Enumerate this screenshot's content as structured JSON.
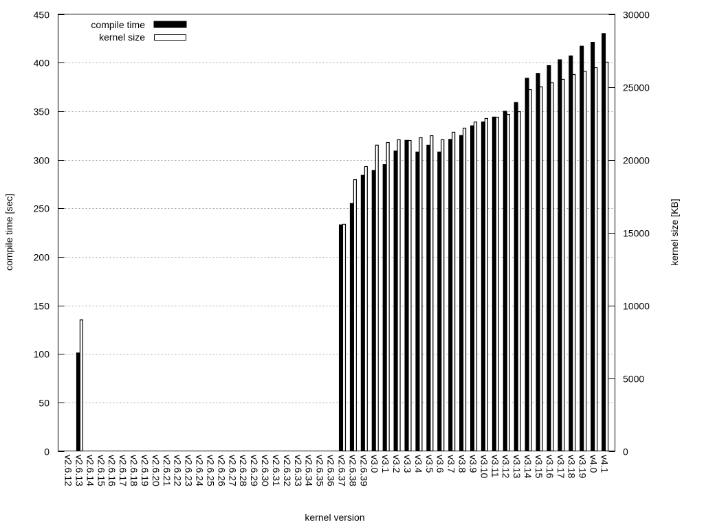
{
  "chart_data": {
    "type": "bar",
    "xlabel": "kernel version",
    "ylabel": "compile time [sec]",
    "y2label": "kernel size [KB]",
    "ylim": [
      0,
      450
    ],
    "y2lim": [
      0,
      30000
    ],
    "yticks": [
      0,
      50,
      100,
      150,
      200,
      250,
      300,
      350,
      400,
      450
    ],
    "y2ticks": [
      0,
      5000,
      10000,
      15000,
      20000,
      25000,
      30000
    ],
    "grid": true,
    "legend_position": "top-left",
    "categories": [
      "v2.6.12",
      "v2.6.13",
      "v2.6.14",
      "v2.6.15",
      "v2.6.16",
      "v2.6.17",
      "v2.6.18",
      "v2.6.19",
      "v2.6.20",
      "v2.6.21",
      "v2.6.22",
      "v2.6.23",
      "v2.6.24",
      "v2.6.25",
      "v2.6.26",
      "v2.6.27",
      "v2.6.28",
      "v2.6.29",
      "v2.6.30",
      "v2.6.31",
      "v2.6.32",
      "v2.6.33",
      "v2.6.34",
      "v2.6.35",
      "v2.6.36",
      "v2.6.37",
      "v2.6.38",
      "v2.6.39",
      "v3.0",
      "v3.1",
      "v3.2",
      "v3.3",
      "v3.4",
      "v3.5",
      "v3.6",
      "v3.7",
      "v3.8",
      "v3.9",
      "v3.10",
      "v3.11",
      "v3.12",
      "v3.13",
      "v3.14",
      "v3.15",
      "v3.16",
      "v3.17",
      "v3.18",
      "v3.19",
      "v4.0",
      "v4.1"
    ],
    "series": [
      {
        "name": "compile time",
        "axis": "left",
        "color": "#000000",
        "values": [
          null,
          101,
          null,
          null,
          null,
          null,
          null,
          null,
          null,
          null,
          null,
          null,
          null,
          null,
          null,
          null,
          null,
          null,
          null,
          null,
          null,
          null,
          null,
          null,
          null,
          233,
          255,
          284,
          289,
          295,
          309,
          320,
          308,
          315,
          308,
          321,
          325,
          335,
          339,
          344,
          350,
          359,
          384,
          389,
          397,
          403,
          407,
          417,
          421,
          430
        ]
      },
      {
        "name": "kernel size",
        "axis": "right",
        "color": "#ffffff",
        "values": [
          null,
          9000,
          null,
          null,
          null,
          null,
          null,
          null,
          null,
          null,
          null,
          null,
          null,
          null,
          null,
          null,
          null,
          null,
          null,
          null,
          null,
          null,
          null,
          null,
          null,
          15570,
          18630,
          19530,
          21000,
          21180,
          21370,
          21320,
          21510,
          21650,
          21370,
          21890,
          22170,
          22590,
          22830,
          22920,
          23110,
          23300,
          24810,
          25000,
          25280,
          25520,
          25850,
          26080,
          26320,
          26700
        ]
      }
    ]
  }
}
